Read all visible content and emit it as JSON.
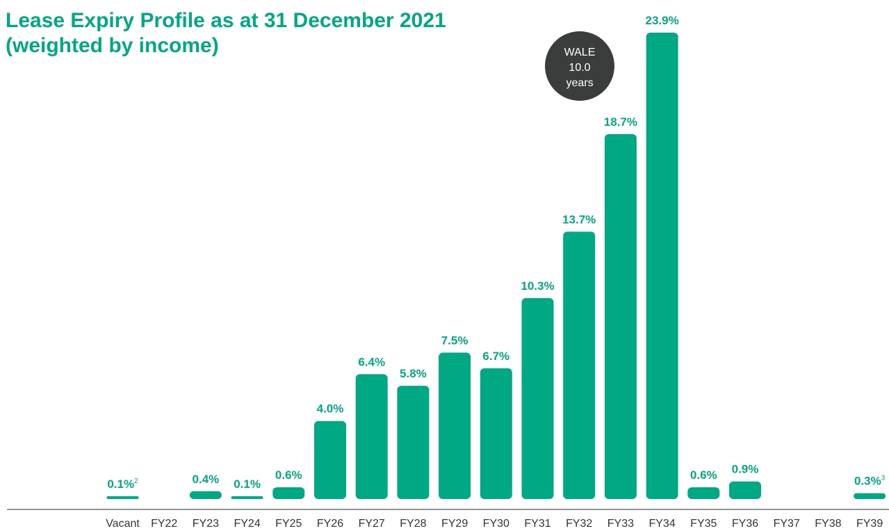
{
  "title": {
    "line1": "Lease Expiry Profile as at 31 December 2021",
    "line2": "(weighted by income)"
  },
  "badge": {
    "line1": "WALE",
    "line2": "10.0",
    "line3": "years",
    "color": "#3b3d3c",
    "text_color": "#ffffff"
  },
  "colors": {
    "bar": "#00a984",
    "label": "#00a984",
    "axis_text": "#333333",
    "baseline": "#555555"
  },
  "chart_data": {
    "type": "bar",
    "categories": [
      "Vacant",
      "FY22",
      "FY23",
      "FY24",
      "FY25",
      "FY26",
      "FY27",
      "FY28",
      "FY29",
      "FY30",
      "FY31",
      "FY32",
      "FY33",
      "FY34",
      "FY35",
      "FY36",
      "FY37",
      "FY38",
      "FY39"
    ],
    "values": [
      0.1,
      null,
      0.4,
      0.1,
      0.6,
      4.0,
      6.4,
      5.8,
      7.5,
      6.7,
      10.3,
      13.7,
      18.7,
      23.9,
      0.6,
      0.9,
      null,
      null,
      0.3
    ],
    "labels": [
      "0.1%",
      "",
      "0.4%",
      "0.1%",
      "0.6%",
      "4.0%",
      "6.4%",
      "5.8%",
      "7.5%",
      "6.7%",
      "10.3%",
      "13.7%",
      "18.7%",
      "23.9%",
      "0.6%",
      "0.9%",
      "",
      "",
      "0.3%"
    ],
    "footnotes": [
      "2",
      "",
      "",
      "",
      "",
      "",
      "",
      "",
      "",
      "",
      "",
      "",
      "",
      "",
      "",
      "",
      "",
      "",
      "3"
    ],
    "ylim": [
      0,
      23.9
    ],
    "grid": false
  }
}
